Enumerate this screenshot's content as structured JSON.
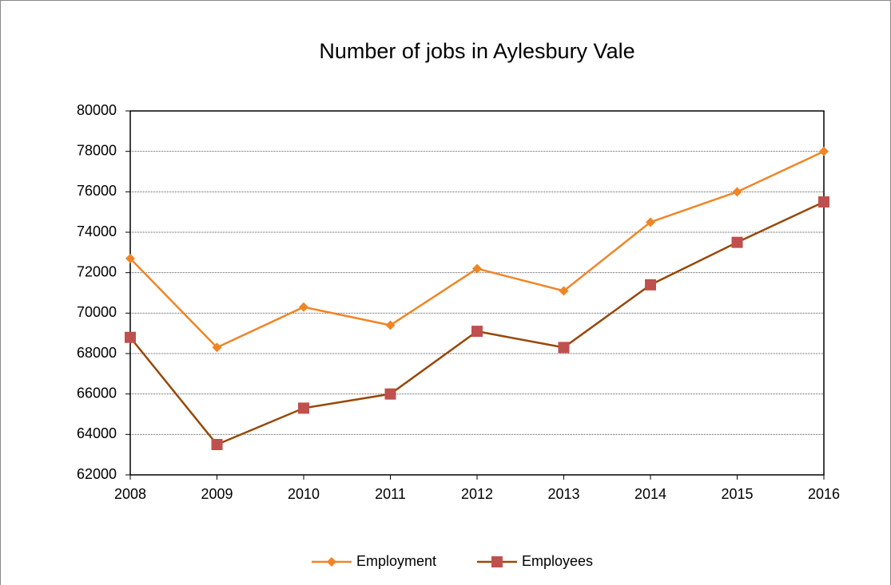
{
  "chart_data": {
    "type": "line",
    "title": "Number of jobs in Aylesbury Vale",
    "x": [
      2008,
      2009,
      2010,
      2011,
      2012,
      2013,
      2014,
      2015,
      2016
    ],
    "xlim": [
      2008,
      2016
    ],
    "xticks": [
      2008,
      2009,
      2010,
      2011,
      2012,
      2013,
      2014,
      2015,
      2016
    ],
    "ylim": [
      62000,
      80000
    ],
    "yticks": [
      62000,
      64000,
      66000,
      68000,
      70000,
      72000,
      74000,
      76000,
      78000,
      80000
    ],
    "grid": true,
    "legend": "bottom",
    "series": [
      {
        "name": "Employment",
        "color": "#F08526",
        "marker": "diamond",
        "values": [
          72700,
          68300,
          70300,
          69400,
          72200,
          71100,
          74500,
          76000,
          78000
        ]
      },
      {
        "name": "Employees",
        "color": "#984807",
        "marker_color": "#C0504D",
        "marker": "square",
        "values": [
          68800,
          63500,
          65300,
          66000,
          69100,
          68300,
          71400,
          73500,
          75500
        ]
      }
    ]
  }
}
